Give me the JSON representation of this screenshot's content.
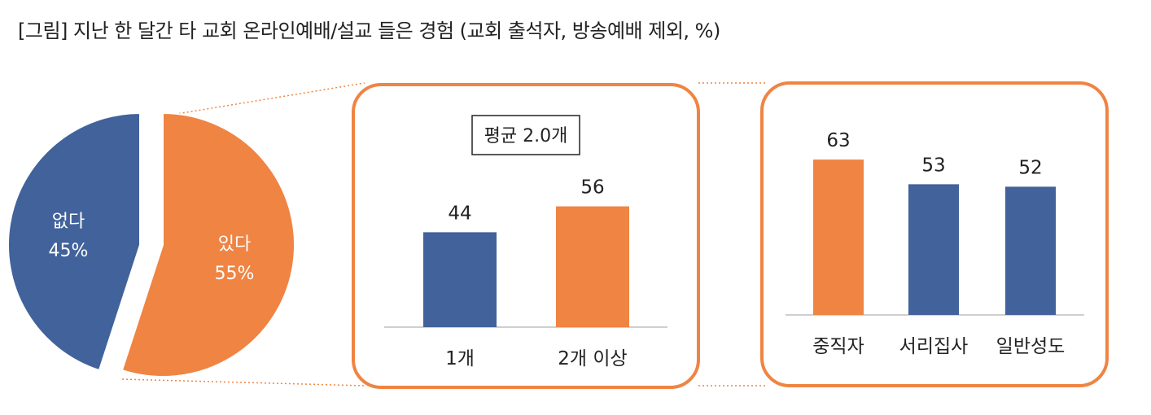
{
  "title": "[그림] 지난 한 달간 타 교회 온라인예배/설교 들은 경험 (교회 출석자, 방송예배 제외, %)",
  "colors": {
    "blue": "#41629B",
    "orange": "#EF8443",
    "panel_border": "#EF8443",
    "axis": "#BFBFBF"
  },
  "chart_data": [
    {
      "type": "pie",
      "categories": [
        "있다",
        "없다"
      ],
      "values": [
        55,
        45
      ],
      "labels": [
        "있다\n55%",
        "없다\n45%"
      ],
      "colors": [
        "#EF8443",
        "#41629B"
      ]
    },
    {
      "type": "bar",
      "annotation": "평균 2.0개",
      "categories": [
        "1개",
        "2개 이상"
      ],
      "values": [
        44,
        56
      ],
      "data_labels": [
        "44",
        "56"
      ],
      "colors": [
        "#41629B",
        "#EF8443"
      ],
      "ylim": [
        0,
        100
      ]
    },
    {
      "type": "bar",
      "categories": [
        "중직자",
        "서리집사",
        "일반성도"
      ],
      "values": [
        63,
        53,
        52
      ],
      "data_labels": [
        "63",
        "53",
        "52"
      ],
      "colors": [
        "#EF8443",
        "#41629B",
        "#41629B"
      ],
      "ylim": [
        0,
        100
      ]
    }
  ]
}
